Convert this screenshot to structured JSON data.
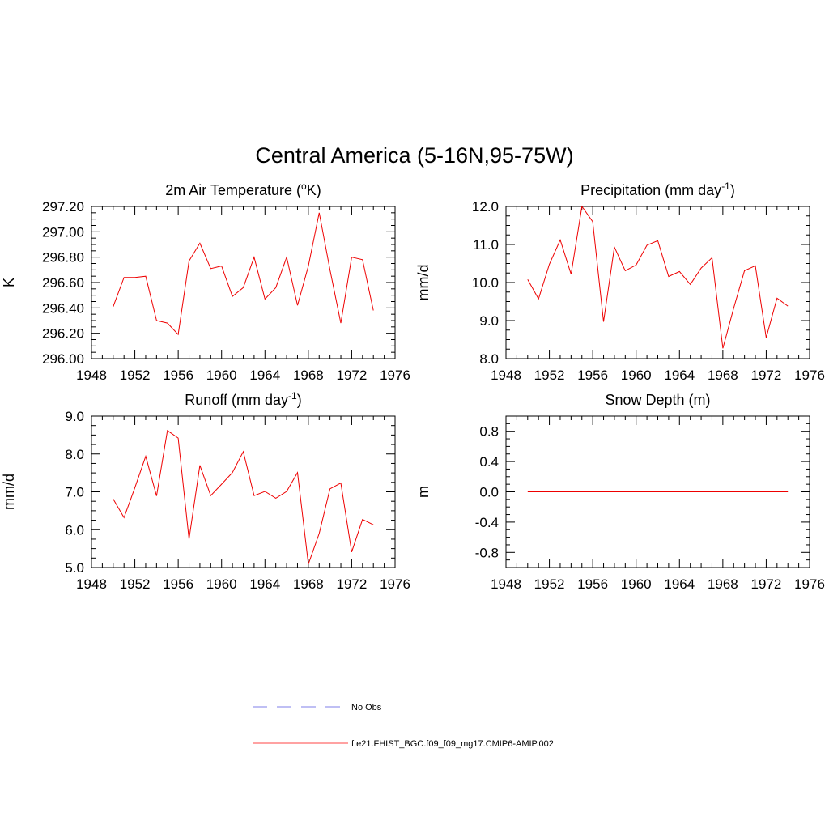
{
  "figure": {
    "title": "Central America (5-16N,95-75W)"
  },
  "legend": {
    "entries": [
      {
        "label": "No Obs",
        "color": "#9999ee",
        "style": "dashed"
      },
      {
        "label": "f.e21.FHIST_BGC.f09_f09_mg17.CMIP6-AMIP.002",
        "color": "#ff4444",
        "style": "solid"
      }
    ]
  },
  "chart_data": [
    {
      "type": "line",
      "title": "2m Air Temperature (",
      "title_sup": "o",
      "title_suffix": "K)",
      "ylabel": "K",
      "xlabel": "",
      "xlim": [
        1948,
        1976
      ],
      "ylim": [
        296.0,
        297.2
      ],
      "xticks": [
        1948,
        1952,
        1956,
        1960,
        1964,
        1968,
        1972,
        1976
      ],
      "yticks": [
        296.0,
        296.2,
        296.4,
        296.6,
        296.8,
        297.0,
        297.2
      ],
      "ytick_labels": [
        "296.00",
        "296.20",
        "296.40",
        "296.60",
        "296.80",
        "297.00",
        "297.20"
      ],
      "series": [
        {
          "name": "f.e21.FHIST_BGC.f09_f09_mg17.CMIP6-AMIP.002",
          "color": "#ee0000",
          "x": [
            1950,
            1951,
            1952,
            1953,
            1954,
            1955,
            1956,
            1957,
            1958,
            1959,
            1960,
            1961,
            1962,
            1963,
            1964,
            1965,
            1966,
            1967,
            1968,
            1969,
            1970,
            1971,
            1972,
            1973,
            1974
          ],
          "values": [
            296.41,
            296.64,
            296.64,
            296.65,
            296.3,
            296.28,
            296.19,
            296.77,
            296.91,
            296.71,
            296.73,
            296.49,
            296.56,
            296.8,
            296.47,
            296.56,
            296.8,
            296.42,
            296.73,
            297.15,
            296.7,
            296.28,
            296.8,
            296.78,
            296.38
          ]
        }
      ]
    },
    {
      "type": "line",
      "title": "Precipitation (mm day",
      "title_sup": "-1",
      "title_suffix": ")",
      "ylabel": "mm/d",
      "xlabel": "",
      "xlim": [
        1948,
        1976
      ],
      "ylim": [
        8.0,
        12.0
      ],
      "xticks": [
        1948,
        1952,
        1956,
        1960,
        1964,
        1968,
        1972,
        1976
      ],
      "yticks": [
        8.0,
        9.0,
        10.0,
        11.0,
        12.0
      ],
      "ytick_labels": [
        "8.0",
        "9.0",
        "10.0",
        "11.0",
        "12.0"
      ],
      "series": [
        {
          "name": "f.e21.FHIST_BGC.f09_f09_mg17.CMIP6-AMIP.002",
          "color": "#ee0000",
          "x": [
            1950,
            1951,
            1952,
            1953,
            1954,
            1955,
            1956,
            1957,
            1958,
            1959,
            1960,
            1961,
            1962,
            1963,
            1964,
            1965,
            1966,
            1967,
            1968,
            1969,
            1970,
            1971,
            1972,
            1973,
            1974
          ],
          "values": [
            10.08,
            9.57,
            10.48,
            11.12,
            10.22,
            12.0,
            11.6,
            8.97,
            10.93,
            10.31,
            10.46,
            10.98,
            11.1,
            10.16,
            10.29,
            9.95,
            10.38,
            10.65,
            8.27,
            9.33,
            10.31,
            10.44,
            8.55,
            9.59,
            9.38
          ]
        }
      ]
    },
    {
      "type": "line",
      "title": "Runoff (mm day",
      "title_sup": "-1",
      "title_suffix": ")",
      "ylabel": "mm/d",
      "xlabel": "",
      "xlim": [
        1948,
        1976
      ],
      "ylim": [
        5.0,
        9.0
      ],
      "xticks": [
        1948,
        1952,
        1956,
        1960,
        1964,
        1968,
        1972,
        1976
      ],
      "yticks": [
        5.0,
        6.0,
        7.0,
        8.0,
        9.0
      ],
      "ytick_labels": [
        "5.0",
        "6.0",
        "7.0",
        "8.0",
        "9.0"
      ],
      "series": [
        {
          "name": "f.e21.FHIST_BGC.f09_f09_mg17.CMIP6-AMIP.002",
          "color": "#ee0000",
          "x": [
            1950,
            1951,
            1952,
            1953,
            1954,
            1955,
            1956,
            1957,
            1958,
            1959,
            1960,
            1961,
            1962,
            1963,
            1964,
            1965,
            1966,
            1967,
            1968,
            1969,
            1970,
            1971,
            1972,
            1973,
            1974
          ],
          "values": [
            6.81,
            6.32,
            7.11,
            7.94,
            6.89,
            8.62,
            8.42,
            5.75,
            7.7,
            6.9,
            7.2,
            7.51,
            8.06,
            6.9,
            7.01,
            6.83,
            7.01,
            7.51,
            5.09,
            5.9,
            7.08,
            7.23,
            5.41,
            6.27,
            6.13
          ]
        }
      ]
    },
    {
      "type": "line",
      "title": "Snow Depth (m)",
      "title_sup": "",
      "title_suffix": "",
      "ylabel": "m",
      "xlabel": "",
      "xlim": [
        1948,
        1976
      ],
      "ylim": [
        -1.0,
        1.0
      ],
      "xticks": [
        1948,
        1952,
        1956,
        1960,
        1964,
        1968,
        1972,
        1976
      ],
      "yticks": [
        -0.8,
        -0.4,
        0.0,
        0.4,
        0.8
      ],
      "ytick_labels": [
        "-0.8",
        "-0.4",
        "0.0",
        "0.4",
        "0.8"
      ],
      "series": [
        {
          "name": "f.e21.FHIST_BGC.f09_f09_mg17.CMIP6-AMIP.002",
          "color": "#ee0000",
          "x": [
            1950,
            1974
          ],
          "values": [
            0.0,
            0.0
          ]
        }
      ]
    }
  ]
}
